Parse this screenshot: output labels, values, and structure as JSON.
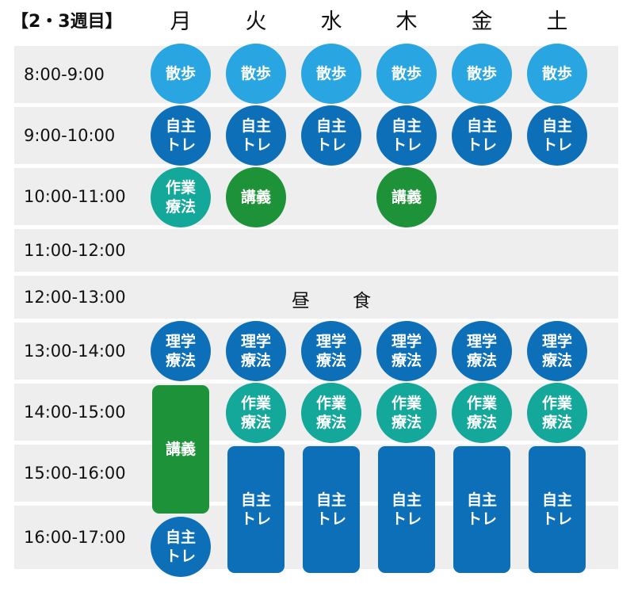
{
  "week_label": "【2・3週目】",
  "days": [
    "月",
    "火",
    "水",
    "木",
    "金",
    "土"
  ],
  "times": [
    "8:00-9:00",
    "9:00-10:00",
    "10:00-11:00",
    "11:00-12:00",
    "12:00-13:00",
    "13:00-14:00",
    "14:00-15:00",
    "15:00-16:00",
    "16:00-17:00"
  ],
  "lunch": [
    "昼",
    "食"
  ],
  "labels": {
    "walk": "散歩",
    "self_1": "自主",
    "self_2": "トレ",
    "ot_1": "作業",
    "ot_2": "療法",
    "pt_1": "理学",
    "pt_2": "療法",
    "lecture": "講義"
  },
  "colors": {
    "walk": "#29a6e1",
    "self": "#0d6fb8",
    "ot": "#14a89a",
    "lecture": "#1e9239",
    "pt": "#0d6fb8",
    "row_bg": "#eeeeee"
  }
}
